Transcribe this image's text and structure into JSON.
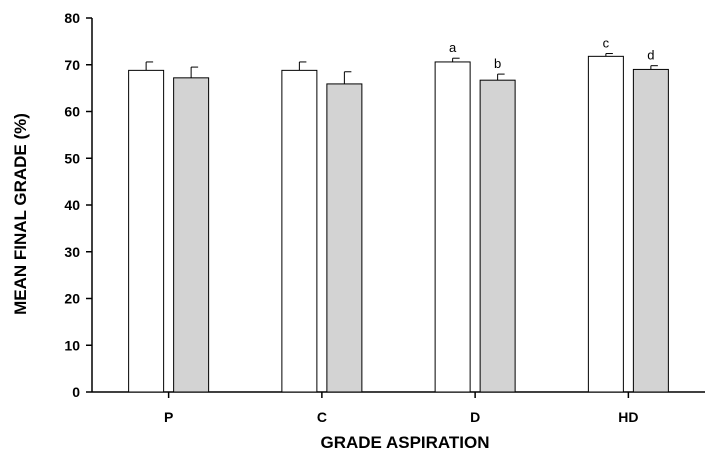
{
  "chart_data": {
    "type": "bar",
    "title": "",
    "xlabel": "GRADE ASPIRATION",
    "ylabel": "MEAN FINAL GRADE (%)",
    "ylim": [
      0,
      80
    ],
    "yticks": [
      "0",
      "10",
      "20",
      "30",
      "40",
      "50",
      "60",
      "70",
      "80"
    ],
    "categories": [
      "P",
      "C",
      "D",
      "HD"
    ],
    "grid": false,
    "legend": "none",
    "series": [
      {
        "fill": "#ffffff",
        "values": [
          68.8,
          68.8,
          70.6,
          71.8
        ],
        "errors": [
          1.8,
          1.8,
          0.8,
          0.6
        ],
        "labels": [
          "",
          "",
          "a",
          "c"
        ]
      },
      {
        "fill": "#d3d3d3",
        "values": [
          67.2,
          65.9,
          66.7,
          69.0
        ],
        "errors": [
          2.3,
          2.6,
          1.3,
          0.8
        ],
        "labels": [
          "",
          "",
          "b",
          "d"
        ]
      }
    ]
  }
}
